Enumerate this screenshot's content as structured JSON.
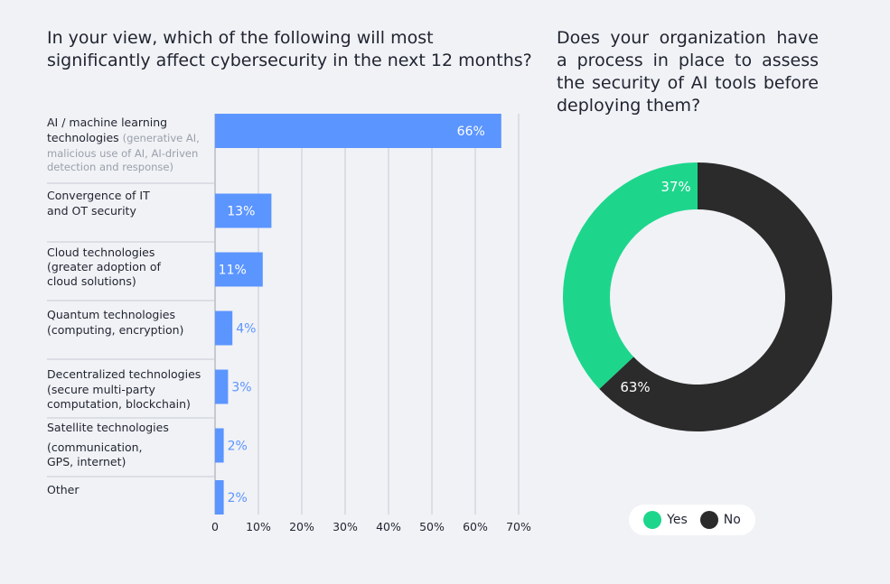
{
  "chart_data": [
    {
      "type": "bar",
      "orientation": "horizontal",
      "title": "In your view, which of the following will most significantly affect cybersecurity in the next 12 months?",
      "categories": [
        {
          "label": "AI / machine learning technologies",
          "sub": "(generative AI, malicious use of AI, AI-driven detection and response)"
        },
        {
          "label": "Convergence of IT and OT security",
          "sub": ""
        },
        {
          "label": "Cloud technologies (greater adoption of cloud solutions)",
          "sub": ""
        },
        {
          "label": "Quantum technologies (computing, encryption)",
          "sub": ""
        },
        {
          "label": "Decentralized technologies (secure multi-party computation, blockchain)",
          "sub": ""
        },
        {
          "label": "Satellite technologies (communication, GPS, internet)",
          "sub": ""
        },
        {
          "label": "Other",
          "sub": ""
        }
      ],
      "values": [
        66,
        13,
        11,
        4,
        3,
        2,
        2
      ],
      "value_labels": [
        "66%",
        "13%",
        "11%",
        "4%",
        "3%",
        "2%",
        "2%"
      ],
      "xlim": [
        0,
        70
      ],
      "xticks": [
        "0",
        "10%",
        "20%",
        "30%",
        "40%",
        "50%",
        "60%",
        "70%"
      ],
      "grid": true,
      "color": "#5b95ff"
    },
    {
      "type": "pie",
      "variant": "donut",
      "title": "Does your organization have a process in place to assess the security of AI tools before deploying them?",
      "categories": [
        "Yes",
        "No"
      ],
      "values": [
        37,
        63
      ],
      "value_labels": [
        "37%",
        "63%"
      ],
      "colors": [
        "#1dd68c",
        "#2b2b2b"
      ],
      "legend": "bottom"
    }
  ]
}
